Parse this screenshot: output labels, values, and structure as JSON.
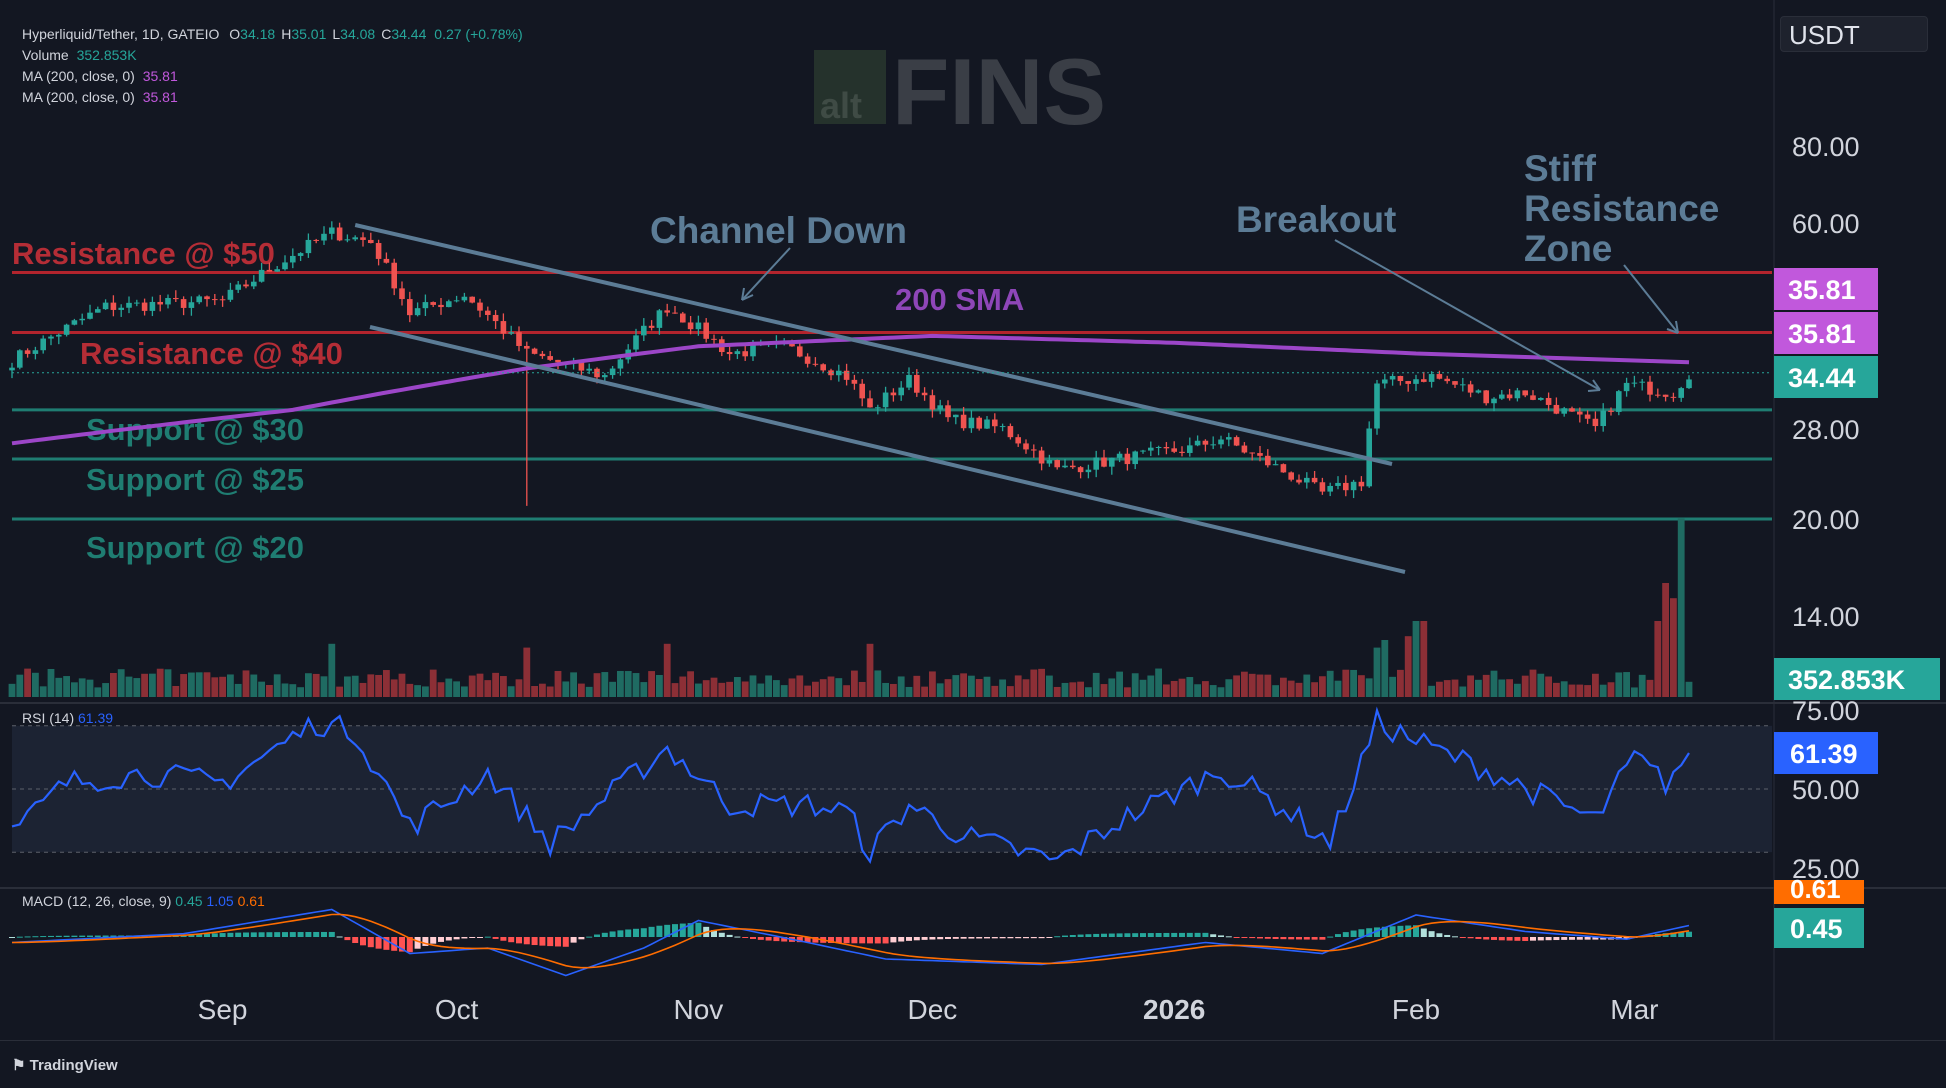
{
  "header": {
    "symbol": "Hyperliquid/Tether, 1D, GATEIO",
    "ohlc": [
      {
        "k": "O",
        "v": "34.18"
      },
      {
        "k": "H",
        "v": "35.01"
      },
      {
        "k": "L",
        "v": "34.08"
      },
      {
        "k": "C",
        "v": "34.44"
      }
    ],
    "change": "0.27 (+0.78%)",
    "volume_label": "Volume",
    "volume_value": "352.853K",
    "ma_lines": [
      {
        "label": "MA (200, close, 0)",
        "value": "35.81"
      },
      {
        "label": "MA (200, close, 0)",
        "value": "35.81"
      }
    ]
  },
  "currency_button": "USDT",
  "watermark": {
    "small": "alt",
    "big": "FINS"
  },
  "colors": {
    "background": "#131722",
    "up": "#26a69a",
    "down": "#ef5350",
    "sma": "#9c46c8",
    "resistance": "#b2242d",
    "support": "#1f7d72",
    "channel": "#5c7c96",
    "rsi": "#2962ff",
    "macd": "#2962ff",
    "signal": "#ff6d00"
  },
  "chart_data": [
    {
      "type": "candlestick",
      "scale": "log",
      "ylim": [
        20,
        80
      ],
      "x_tick_labels": [
        "Sep",
        "Oct",
        "Nov",
        "Dec",
        "2026",
        "Feb",
        "Mar"
      ],
      "y_tick_labels": [
        "80.00",
        "60.00",
        "28.00",
        "20.00",
        "14.00"
      ],
      "price_anchors": [
        {
          "date": "Aug 03",
          "price": 36
        },
        {
          "date": "Aug 15",
          "price": 44
        },
        {
          "date": "Sep 01",
          "price": 45
        },
        {
          "date": "Sep 15",
          "price": 58
        },
        {
          "date": "Sep 20",
          "price": 56
        },
        {
          "date": "Sep 25",
          "price": 43
        },
        {
          "date": "Oct 02",
          "price": 46
        },
        {
          "date": "Oct 10",
          "price": 37
        },
        {
          "date": "Oct 20",
          "price": 34
        },
        {
          "date": "Oct 28",
          "price": 44
        },
        {
          "date": "Nov 05",
          "price": 37
        },
        {
          "date": "Nov 12",
          "price": 38
        },
        {
          "date": "Nov 20",
          "price": 34
        },
        {
          "date": "Nov 23",
          "price": 30
        },
        {
          "date": "Nov 28",
          "price": 33.5
        },
        {
          "date": "Dec 03",
          "price": 29
        },
        {
          "date": "Dec 10",
          "price": 28
        },
        {
          "date": "Dec 17",
          "price": 24
        },
        {
          "date": "Dec 25",
          "price": 25
        },
        {
          "date": "Jan 03",
          "price": 26
        },
        {
          "date": "Jan 07",
          "price": 27
        },
        {
          "date": "Jan 12",
          "price": 25
        },
        {
          "date": "Jan 20",
          "price": 22
        },
        {
          "date": "Jan 25",
          "price": 23
        },
        {
          "date": "Jan 27",
          "price": 33
        },
        {
          "date": "Feb 03",
          "price": 34
        },
        {
          "date": "Feb 10",
          "price": 31.5
        },
        {
          "date": "Feb 15",
          "price": 32
        },
        {
          "date": "Feb 24",
          "price": 28
        },
        {
          "date": "Feb 28",
          "price": 33
        },
        {
          "date": "Mar 06",
          "price": 32
        },
        {
          "date": "Mar 08",
          "price": 34.44
        }
      ],
      "sma_200": [
        {
          "date": "Aug 03",
          "value": 26.5
        },
        {
          "date": "Sep 10",
          "value": 30
        },
        {
          "date": "Oct 10",
          "value": 35
        },
        {
          "date": "Nov 01",
          "value": 38
        },
        {
          "date": "Dec 01",
          "value": 39.5
        },
        {
          "date": "Jan 01",
          "value": 38.5
        },
        {
          "date": "Feb 01",
          "value": 37
        },
        {
          "date": "Mar 08",
          "value": 35.81
        }
      ],
      "horizontal_levels": [
        {
          "label": "Resistance @ $50",
          "kind": "resistance",
          "price": 50
        },
        {
          "label": "Resistance @ $40",
          "kind": "resistance",
          "price": 40
        },
        {
          "label": "Support @ $30",
          "kind": "support",
          "price": 30
        },
        {
          "label": "Support @ $25",
          "kind": "support",
          "price": 25
        },
        {
          "label": "Support @ $20",
          "kind": "support",
          "price": 20
        }
      ],
      "annotations": [
        "Channel Down",
        "200 SMA",
        "Breakout",
        "Stiff\nResistance\nZone"
      ],
      "price_labels": [
        {
          "text": "35.81",
          "color": "#c158dc"
        },
        {
          "text": "35.81",
          "color": "#c158dc"
        },
        {
          "text": "34.44",
          "color": "#26a69a"
        },
        {
          "text": "352.853K",
          "color": "#26a69a"
        }
      ]
    },
    {
      "type": "line",
      "name": "RSI (14)",
      "current": "61.39",
      "ylim": [
        15,
        80
      ],
      "y_tick_labels": [
        "75.00",
        "50.00",
        "25.00"
      ],
      "anchors": [
        {
          "date": "Aug 03",
          "value": 36
        },
        {
          "date": "Aug 10",
          "value": 52
        },
        {
          "date": "Aug 20",
          "value": 55
        },
        {
          "date": "Sep 01",
          "value": 52
        },
        {
          "date": "Sep 13",
          "value": 71
        },
        {
          "date": "Sep 18",
          "value": 68
        },
        {
          "date": "Sep 25",
          "value": 38
        },
        {
          "date": "Oct 05",
          "value": 55
        },
        {
          "date": "Oct 13",
          "value": 33
        },
        {
          "date": "Oct 28",
          "value": 63
        },
        {
          "date": "Nov 05",
          "value": 45
        },
        {
          "date": "Nov 15",
          "value": 45
        },
        {
          "date": "Nov 20",
          "value": 43
        },
        {
          "date": "Nov 23",
          "value": 30
        },
        {
          "date": "Nov 28",
          "value": 45
        },
        {
          "date": "Dec 05",
          "value": 35
        },
        {
          "date": "Dec 17",
          "value": 27
        },
        {
          "date": "Dec 25",
          "value": 40
        },
        {
          "date": "Jan 07",
          "value": 56
        },
        {
          "date": "Jan 15",
          "value": 44
        },
        {
          "date": "Jan 21",
          "value": 33
        },
        {
          "date": "Jan 27",
          "value": 71
        },
        {
          "date": "Feb 03",
          "value": 63
        },
        {
          "date": "Feb 10",
          "value": 56
        },
        {
          "date": "Feb 24",
          "value": 40
        },
        {
          "date": "Mar 01",
          "value": 60
        },
        {
          "date": "Mar 05",
          "value": 52
        },
        {
          "date": "Mar 08",
          "value": 61.39
        }
      ]
    },
    {
      "type": "line",
      "name": "MACD (12, 26, close, 9)",
      "values_shown": [
        "0.45",
        "1.05",
        "0.61"
      ],
      "series": [
        {
          "name": "MACD"
        },
        {
          "name": "Signal"
        },
        {
          "name": "Histogram"
        }
      ],
      "histogram_value": "0.45",
      "signal_value": "0.61",
      "anchors_macd": [
        {
          "date": "Aug 03",
          "value": -0.5
        },
        {
          "date": "Aug 25",
          "value": 0.3
        },
        {
          "date": "Sep 15",
          "value": 2.5
        },
        {
          "date": "Sep 25",
          "value": -1.5
        },
        {
          "date": "Oct 05",
          "value": -1
        },
        {
          "date": "Oct 15",
          "value": -3.5
        },
        {
          "date": "Oct 25",
          "value": -1
        },
        {
          "date": "Nov 01",
          "value": 1.5
        },
        {
          "date": "Nov 15",
          "value": -0.5
        },
        {
          "date": "Nov 25",
          "value": -2
        },
        {
          "date": "Dec 15",
          "value": -2.5
        },
        {
          "date": "Jan 05",
          "value": -0.5
        },
        {
          "date": "Jan 20",
          "value": -1.5
        },
        {
          "date": "Feb 01",
          "value": 2
        },
        {
          "date": "Feb 15",
          "value": 0.5
        },
        {
          "date": "Feb 28",
          "value": -0.2
        },
        {
          "date": "Mar 08",
          "value": 1.05
        }
      ]
    }
  ],
  "branding": "TradingView"
}
